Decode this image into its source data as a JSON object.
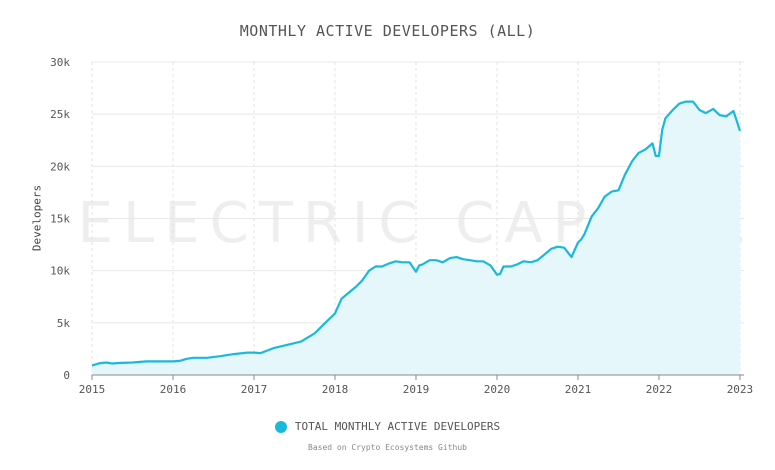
{
  "chart_data": {
    "type": "area",
    "title": "MONTHLY ACTIVE DEVELOPERS (ALL)",
    "xlabel": "",
    "ylabel": "Developers",
    "xlim": [
      2015.0,
      2023.05
    ],
    "ylim": [
      0,
      30000
    ],
    "x_ticks": [
      2015,
      2016,
      2017,
      2018,
      2019,
      2020,
      2021,
      2022,
      2023
    ],
    "y_ticks": [
      {
        "value": 0,
        "label": "0"
      },
      {
        "value": 5000,
        "label": "5k"
      },
      {
        "value": 10000,
        "label": "10k"
      },
      {
        "value": 15000,
        "label": "15k"
      },
      {
        "value": 20000,
        "label": "20k"
      },
      {
        "value": 25000,
        "label": "25k"
      },
      {
        "value": 30000,
        "label": "30k"
      }
    ],
    "grid": true,
    "legend_position": "bottom-center",
    "watermark": "ELECTRIC CAPITAL",
    "series": [
      {
        "name": "TOTAL MONTHLY ACTIVE DEVELOPERS",
        "color": "#1ab8dd",
        "fill": "#e6f7fc",
        "x": [
          2015.0,
          2015.08,
          2015.17,
          2015.25,
          2015.33,
          2015.5,
          2015.67,
          2015.83,
          2016.0,
          2016.08,
          2016.17,
          2016.25,
          2016.42,
          2016.58,
          2016.75,
          2016.92,
          2017.0,
          2017.08,
          2017.25,
          2017.42,
          2017.58,
          2017.75,
          2017.92,
          2018.0,
          2018.08,
          2018.17,
          2018.25,
          2018.33,
          2018.42,
          2018.5,
          2018.58,
          2018.67,
          2018.75,
          2018.83,
          2018.92,
          2019.0,
          2019.04,
          2019.08,
          2019.17,
          2019.25,
          2019.33,
          2019.42,
          2019.5,
          2019.58,
          2019.67,
          2019.75,
          2019.83,
          2019.92,
          2020.0,
          2020.04,
          2020.08,
          2020.17,
          2020.25,
          2020.33,
          2020.42,
          2020.5,
          2020.58,
          2020.67,
          2020.75,
          2020.83,
          2020.92,
          2021.0,
          2021.04,
          2021.08,
          2021.17,
          2021.25,
          2021.33,
          2021.42,
          2021.5,
          2021.58,
          2021.67,
          2021.75,
          2021.83,
          2021.92,
          2021.96,
          2022.0,
          2022.04,
          2022.08,
          2022.17,
          2022.25,
          2022.33,
          2022.42,
          2022.5,
          2022.58,
          2022.67,
          2022.75,
          2022.83,
          2022.92,
          2023.0
        ],
        "values": [
          900,
          1100,
          1200,
          1100,
          1150,
          1200,
          1300,
          1300,
          1300,
          1350,
          1550,
          1650,
          1650,
          1800,
          2000,
          2150,
          2150,
          2100,
          2600,
          2900,
          3200,
          4000,
          5300,
          5900,
          7300,
          7900,
          8400,
          9000,
          10000,
          10400,
          10400,
          10700,
          10900,
          10800,
          10800,
          9900,
          10500,
          10600,
          11000,
          11000,
          10800,
          11200,
          11300,
          11100,
          11000,
          10900,
          10900,
          10500,
          9600,
          9700,
          10400,
          10400,
          10600,
          10900,
          10800,
          11000,
          11500,
          12100,
          12300,
          12200,
          11300,
          12700,
          13000,
          13500,
          15200,
          16000,
          17100,
          17600,
          17700,
          19200,
          20500,
          21300,
          21600,
          22200,
          21000,
          21000,
          23500,
          24600,
          25400,
          26000,
          26200,
          26200,
          25400,
          25100,
          25500,
          24900,
          24800,
          25300,
          23400
        ]
      }
    ],
    "source_note": "Based on Crypto Ecosystems Github"
  }
}
